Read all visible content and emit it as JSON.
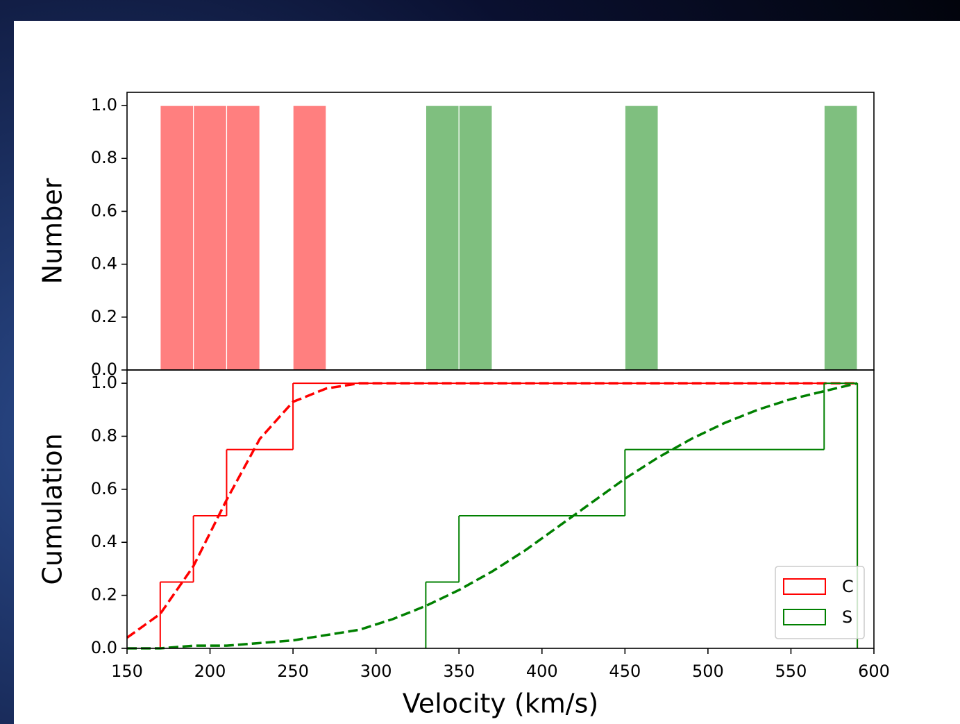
{
  "chart_data": [
    {
      "type": "histogram",
      "ylabel": "Number",
      "xlim": [
        150,
        600
      ],
      "ylim": [
        0,
        1.05
      ],
      "yticks": [
        {
          "value": 0,
          "label": "0.0"
        },
        0.2,
        0.4,
        0.6,
        0.8,
        {
          "value": 1,
          "label": "1.0"
        }
      ],
      "series": [
        {
          "color": "#ff7f7f",
          "bins": [
            170,
            190,
            210,
            230,
            250,
            270
          ],
          "values": [
            1,
            1,
            1,
            0,
            1
          ]
        },
        {
          "color": "#7fbf7f",
          "bins": [
            330,
            350,
            370,
            390,
            410,
            430,
            450,
            470,
            490,
            510,
            530,
            550,
            570,
            590
          ],
          "values": [
            1,
            1,
            0,
            0,
            0,
            0,
            1,
            0,
            0,
            0,
            0,
            0,
            1
          ]
        }
      ]
    },
    {
      "type": "step",
      "ylabel": "Cumulation",
      "xlabel": "Velocity (km/s)",
      "xlim": [
        150,
        600
      ],
      "ylim": [
        0,
        1.05
      ],
      "xticks": [
        150,
        200,
        250,
        300,
        350,
        400,
        450,
        500,
        550,
        600
      ],
      "yticks": [
        {
          "value": 0,
          "label": "0.0"
        },
        0.2,
        0.4,
        0.6,
        0.8,
        {
          "value": 1,
          "label": "1.0"
        }
      ],
      "legend": "lower right",
      "series": [
        {
          "name": "C",
          "color": "#ff0000",
          "edges": [
            170,
            190,
            210,
            250,
            590
          ],
          "values": [
            0.25,
            0.5,
            0.75,
            1.0
          ],
          "fit_x": [
            150,
            170,
            190,
            210,
            230,
            250,
            270,
            290,
            310,
            330,
            350,
            370,
            390,
            410,
            430,
            450,
            470,
            490,
            510,
            530,
            550,
            570,
            590
          ],
          "fit_values": [
            0.04,
            0.13,
            0.31,
            0.56,
            0.79,
            0.93,
            0.98,
            1.0,
            1.0,
            1.0,
            1.0,
            1.0,
            1.0,
            1.0,
            1.0,
            1.0,
            1.0,
            1.0,
            1.0,
            1.0,
            1.0,
            1.0,
            1.0
          ]
        },
        {
          "name": "S",
          "color": "#008000",
          "edges": [
            330,
            350,
            450,
            570,
            590
          ],
          "values": [
            0.25,
            0.5,
            0.75,
            1.0
          ],
          "fit_x": [
            150,
            170,
            190,
            210,
            230,
            250,
            270,
            290,
            310,
            330,
            350,
            370,
            390,
            410,
            430,
            450,
            470,
            490,
            510,
            530,
            550,
            570,
            590
          ],
          "fit_values": [
            0.0,
            0.0,
            0.01,
            0.01,
            0.02,
            0.03,
            0.05,
            0.07,
            0.11,
            0.16,
            0.22,
            0.29,
            0.37,
            0.46,
            0.55,
            0.64,
            0.72,
            0.79,
            0.85,
            0.9,
            0.94,
            0.97,
            1.0
          ]
        }
      ]
    }
  ]
}
